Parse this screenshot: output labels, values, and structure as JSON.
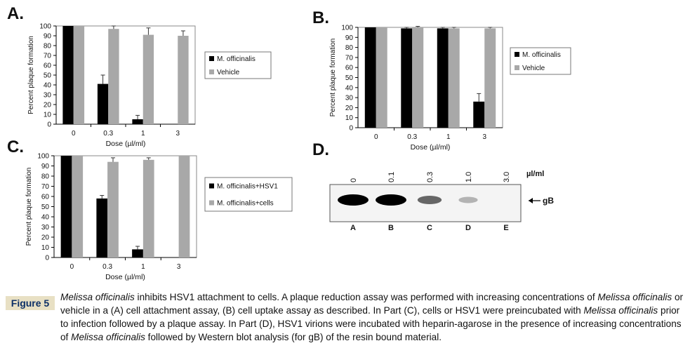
{
  "colors": {
    "series_black": "#000000",
    "series_gray": "#a8a8a8",
    "caption_label_bg": "#e8e0c4",
    "caption_label_text": "#0c2f66"
  },
  "panels": {
    "a": {
      "letter": "A."
    },
    "b": {
      "letter": "B."
    },
    "c": {
      "letter": "C."
    },
    "d": {
      "letter": "D."
    }
  },
  "chart_data": [
    {
      "panel": "A",
      "type": "bar",
      "categories": [
        "0",
        "0.3",
        "1",
        "3"
      ],
      "xlabel": "Dose (µl/ml)",
      "ylabel": "Percent plaque formation",
      "ylim": [
        0,
        100
      ],
      "yticks": [
        0,
        10,
        20,
        30,
        40,
        50,
        60,
        70,
        80,
        90,
        100
      ],
      "legend_position": "right",
      "series": [
        {
          "name": "M. officinalis",
          "color": "#000000",
          "values": [
            100,
            41,
            5,
            0
          ],
          "errors": [
            0,
            9,
            4,
            0
          ]
        },
        {
          "name": "Vehicle",
          "color": "#a8a8a8",
          "values": [
            100,
            97,
            91,
            90
          ],
          "errors": [
            0,
            3,
            7,
            5
          ]
        }
      ]
    },
    {
      "panel": "B",
      "type": "bar",
      "categories": [
        "0",
        "0.3",
        "1",
        "3"
      ],
      "xlabel": "Dose (µl/ml)",
      "ylabel": "Percent plaque formation",
      "ylim": [
        0,
        100
      ],
      "yticks": [
        0,
        10,
        20,
        30,
        40,
        50,
        60,
        70,
        80,
        90,
        100
      ],
      "legend_position": "right",
      "series": [
        {
          "name": "M. officinalis",
          "color": "#000000",
          "values": [
            100,
            99,
            99,
            26
          ],
          "errors": [
            0,
            1,
            1,
            8
          ]
        },
        {
          "name": "Vehicle",
          "color": "#a8a8a8",
          "values": [
            100,
            100,
            99,
            99
          ],
          "errors": [
            0,
            1,
            1,
            1
          ]
        }
      ]
    },
    {
      "panel": "C",
      "type": "bar",
      "categories": [
        "0",
        "0.3",
        "1",
        "3"
      ],
      "xlabel": "Dose (µl/ml)",
      "ylabel": "Percent plaque formation",
      "ylim": [
        0,
        100
      ],
      "yticks": [
        0,
        10,
        20,
        30,
        40,
        50,
        60,
        70,
        80,
        90,
        100
      ],
      "legend_position": "right",
      "series": [
        {
          "name": "M. officinalis+HSV1",
          "color": "#000000",
          "values": [
            100,
            58,
            8,
            0
          ],
          "errors": [
            0,
            3,
            3,
            0
          ]
        },
        {
          "name": "M. officinalis+cells",
          "color": "#a8a8a8",
          "values": [
            100,
            94,
            96,
            100
          ],
          "errors": [
            0,
            4,
            2,
            0
          ]
        }
      ]
    },
    {
      "panel": "D",
      "type": "western-blot",
      "lane_doses": [
        "0",
        "0.1",
        "0.3",
        "1.0",
        "3.0"
      ],
      "unit": "µl/ml",
      "lane_letters": [
        "A",
        "B",
        "C",
        "D",
        "E"
      ],
      "band_label": "gB",
      "band_intensity": [
        1.0,
        1.0,
        0.6,
        0.3,
        0.0
      ]
    }
  ],
  "caption": {
    "label": "Figure 5",
    "parts": [
      {
        "text": "Melissa officinalis",
        "italic": true
      },
      {
        "text": " inhibits HSV1 attachment to cells. A plaque reduction assay was performed with increasing concentrations of ",
        "italic": false
      },
      {
        "text": "Melissa officinalis",
        "italic": true
      },
      {
        "text": " or vehicle in a (A) cell attachment assay, (B) cell uptake assay as described. In Part (C), cells or HSV1 were preincubated with ",
        "italic": false
      },
      {
        "text": "Melissa officinalis",
        "italic": true
      },
      {
        "text": " prior to infection followed by a plaque assay. In Part (D), HSV1 virions were incubated with heparin-agarose in the presence of increasing concentrations of ",
        "italic": false
      },
      {
        "text": "Melissa officinalis",
        "italic": true
      },
      {
        "text": " followed by Western blot analysis (for gB) of the resin bound material.",
        "italic": false
      }
    ]
  }
}
